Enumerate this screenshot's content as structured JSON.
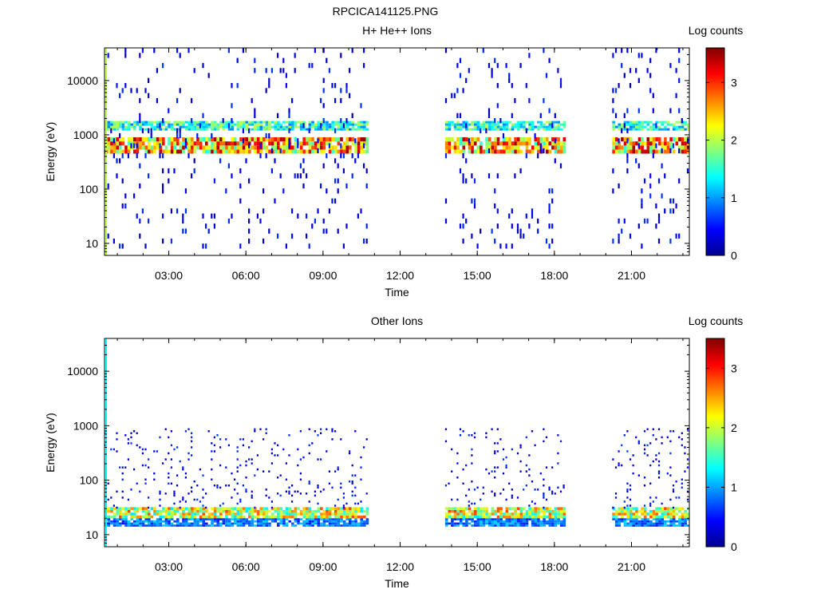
{
  "figure_title": "RPCICA141125.PNG",
  "chart_data": [
    {
      "type": "heatmap",
      "title": "H+ He++ Ions",
      "xlabel": "Time",
      "ylabel": "Energy (eV)",
      "yscale": "log",
      "xlim_hours": [
        0.5,
        23.25
      ],
      "ylim": [
        6,
        40000
      ],
      "xticks": [
        "03:00",
        "06:00",
        "09:00",
        "12:00",
        "15:00",
        "18:00",
        "21:00"
      ],
      "xtick_hours": [
        3,
        6,
        9,
        12,
        15,
        18,
        21
      ],
      "yticks": [
        "10",
        "100",
        "1000",
        "10000"
      ],
      "ytick_values": [
        10,
        100,
        1000,
        10000
      ],
      "colorbar": {
        "label": "Log counts",
        "range": [
          0,
          3.6
        ],
        "ticks": [
          "0",
          "1",
          "2",
          "3"
        ],
        "tick_values": [
          0,
          1,
          2,
          3
        ]
      },
      "data_intervals_hours": [
        [
          0.5,
          10.75
        ],
        [
          13.75,
          18.4
        ],
        [
          20.25,
          23.25
        ]
      ],
      "bands": [
        {
          "energy_ev": [
            1200,
            1800
          ],
          "log_counts": 1.6
        },
        {
          "energy_ev": [
            450,
            900
          ],
          "log_counts": 2.7
        },
        {
          "energy_ev": [
            8,
            40000
          ],
          "log_counts": 0.3,
          "note": "sparse background"
        }
      ],
      "grid": false
    },
    {
      "type": "heatmap",
      "title": "Other Ions",
      "xlabel": "Time",
      "ylabel": "Energy (eV)",
      "yscale": "log",
      "xlim_hours": [
        0.5,
        23.25
      ],
      "ylim": [
        6,
        40000
      ],
      "xticks": [
        "03:00",
        "06:00",
        "09:00",
        "12:00",
        "15:00",
        "18:00",
        "21:00"
      ],
      "xtick_hours": [
        3,
        6,
        9,
        12,
        15,
        18,
        21
      ],
      "yticks": [
        "10",
        "100",
        "1000",
        "10000"
      ],
      "ytick_values": [
        10,
        100,
        1000,
        10000
      ],
      "colorbar": {
        "label": "Log counts",
        "range": [
          0,
          3.5
        ],
        "ticks": [
          "0",
          "1",
          "2",
          "3"
        ],
        "tick_values": [
          0,
          1,
          2,
          3
        ]
      },
      "data_intervals_hours": [
        [
          0.5,
          10.75
        ],
        [
          13.75,
          18.4
        ],
        [
          20.25,
          23.25
        ]
      ],
      "bands": [
        {
          "energy_ev": [
            20,
            32
          ],
          "log_counts": 2.2
        },
        {
          "energy_ev": [
            14,
            20
          ],
          "log_counts": 0.9
        },
        {
          "energy_ev": [
            30,
            900
          ],
          "log_counts": 0.3,
          "note": "sparse background"
        }
      ],
      "grid": false
    }
  ]
}
